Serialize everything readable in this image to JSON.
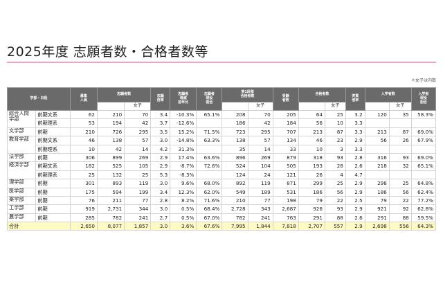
{
  "page": {
    "title": "2025年度 志願者数・合格者数等",
    "note": "＊女子は内数"
  },
  "table": {
    "headers": {
      "faculty_course": "学部・日程",
      "capacity": [
        "募集",
        "人員"
      ],
      "applicants": "志願者数",
      "applicants_female": "女子",
      "app_ratio": [
        "志願",
        "倍率"
      ],
      "app_change": [
        "志願者",
        "増減",
        "前年比"
      ],
      "app_regional": [
        "志願者",
        "現役",
        "割合"
      ],
      "first_stage": [
        "第1段階",
        "合格者数"
      ],
      "first_stage_female": "女子",
      "examinees": [
        "受験",
        "者数"
      ],
      "passers": "合格者数",
      "passers_female": "女子",
      "actual_ratio": [
        "実質",
        "倍率"
      ],
      "enrolled": "入学者数",
      "enrolled_female": "女子",
      "enrolled_regional": [
        "入学者",
        "現役",
        "割合"
      ]
    },
    "rows": [
      {
        "faculty": "総合人間学部",
        "course": "前期文系",
        "cells": [
          "62",
          "210",
          "70",
          "3.4",
          "-10.3%",
          "65.1%",
          "208",
          "70",
          "205",
          "64",
          "25",
          "3.2",
          "120",
          "35",
          "58.3%"
        ]
      },
      {
        "course": "前期理系",
        "cells": [
          "53",
          "194",
          "42",
          "3.7",
          "-12.6%",
          "",
          "186",
          "42",
          "184",
          "56",
          "10",
          "3.3",
          "",
          "",
          ""
        ]
      },
      {
        "faculty": "文学部",
        "course": "前期",
        "cells": [
          "210",
          "726",
          "295",
          "3.5",
          "15.2%",
          "71.5%",
          "723",
          "295",
          "707",
          "213",
          "87",
          "3.3",
          "213",
          "87",
          "69.0%"
        ]
      },
      {
        "faculty": "教育学部",
        "course": "前期文系",
        "cells": [
          "46",
          "138",
          "57",
          "3.0",
          "-14.8%",
          "63.3%",
          "138",
          "57",
          "134",
          "46",
          "23",
          "2.9",
          "56",
          "26",
          "67.9%"
        ]
      },
      {
        "course": "前期理系",
        "cells": [
          "10",
          "42",
          "14",
          "4.2",
          "31.3%",
          "",
          "35",
          "14",
          "33",
          "10",
          "3",
          "3.3",
          "",
          "",
          ""
        ]
      },
      {
        "faculty": "法学部",
        "course": "前期",
        "cells": [
          "306",
          "899",
          "269",
          "2.9",
          "17.4%",
          "63.6%",
          "896",
          "269",
          "879",
          "318",
          "93",
          "2.8",
          "316",
          "93",
          "69.0%"
        ]
      },
      {
        "faculty": "経済学部",
        "course": "前期文系",
        "cells": [
          "182",
          "525",
          "105",
          "2.9",
          "-8.7%",
          "72.6%",
          "524",
          "104",
          "505",
          "193",
          "28",
          "2.6",
          "218",
          "32",
          "65.1%"
        ]
      },
      {
        "course": "前期理系",
        "cells": [
          "25",
          "132",
          "25",
          "5.3",
          "-8.3%",
          "",
          "124",
          "24",
          "121",
          "26",
          "4",
          "4.7",
          "",
          "",
          ""
        ]
      },
      {
        "faculty": "理学部",
        "course": "前期",
        "cells": [
          "301",
          "893",
          "119",
          "3.0",
          "9.6%",
          "68.0%",
          "892",
          "119",
          "871",
          "299",
          "25",
          "2.9",
          "298",
          "25",
          "64.8%"
        ]
      },
      {
        "faculty": "医学部",
        "course": "前期",
        "cells": [
          "175",
          "594",
          "199",
          "3.4",
          "12.3%",
          "62.0%",
          "549",
          "189",
          "531",
          "186",
          "56",
          "2.9",
          "186",
          "56",
          "62.4%"
        ]
      },
      {
        "faculty": "薬学部",
        "course": "前期",
        "cells": [
          "76",
          "211",
          "77",
          "2.8",
          "8.2%",
          "71.6%",
          "210",
          "77",
          "198",
          "79",
          "22",
          "2.5",
          "79",
          "22",
          "77.2%"
        ]
      },
      {
        "faculty": "工学部",
        "course": "前期",
        "cells": [
          "919",
          "2,731",
          "344",
          "3.0",
          "0.5%",
          "68.4%",
          "2,728",
          "343",
          "2,687",
          "926",
          "93",
          "2.9",
          "921",
          "92",
          "62.8%"
        ]
      },
      {
        "faculty": "農学部",
        "course": "前期",
        "cells": [
          "285",
          "782",
          "241",
          "2.7",
          "0.5%",
          "67.0%",
          "782",
          "241",
          "763",
          "291",
          "88",
          "2.6",
          "291",
          "88",
          "59.5%"
        ]
      }
    ],
    "total": {
      "label": "合計",
      "cells": [
        "2,650",
        "8,077",
        "1,857",
        "3.0",
        "3.6%",
        "67.6%",
        "7,995",
        "1,844",
        "7,818",
        "2,707",
        "557",
        "2.9",
        "2,698",
        "556",
        "64.3%"
      ]
    }
  }
}
